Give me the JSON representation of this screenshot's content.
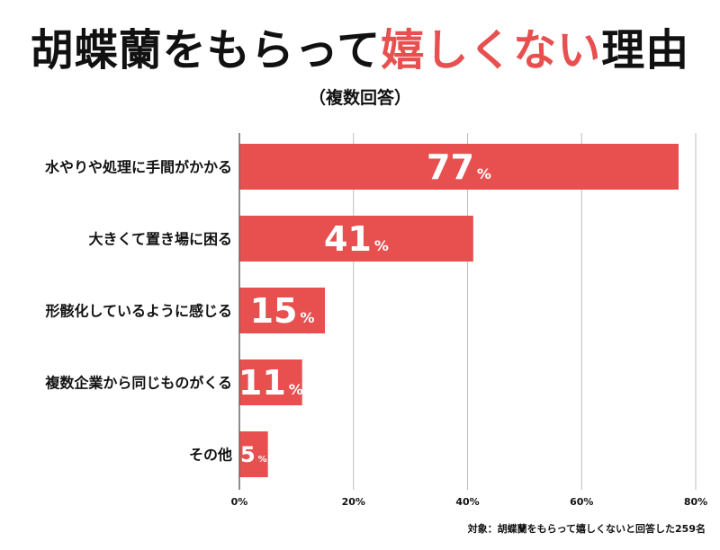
{
  "title": {
    "before": "胡蝶蘭をもらって",
    "accent": "嬉しくない",
    "after": "理由"
  },
  "subtitle": "（複数回答）",
  "footnote": "対象：胡蝶蘭をもらって嬉しくないと回答した259名",
  "colors": {
    "bar": "#e85050",
    "grid": "#bdbdbd",
    "axis": "#666666",
    "text": "#111111",
    "value_text": "#ffffff"
  },
  "chart_data": {
    "type": "bar",
    "orientation": "horizontal",
    "categories": [
      "水やりや処理に手間がかかる",
      "大きくて置き場に困る",
      "形骸化しているように感じる",
      "複数企業から同じものがくる",
      "その他"
    ],
    "values": [
      77,
      41,
      15,
      11,
      5
    ],
    "value_unit": "%",
    "xlim": [
      0,
      80
    ],
    "xticks": [
      0,
      20,
      40,
      60,
      80
    ],
    "xtick_labels": [
      "0%",
      "20%",
      "40%",
      "60%",
      "80%"
    ],
    "grid": true,
    "legend": "none"
  }
}
